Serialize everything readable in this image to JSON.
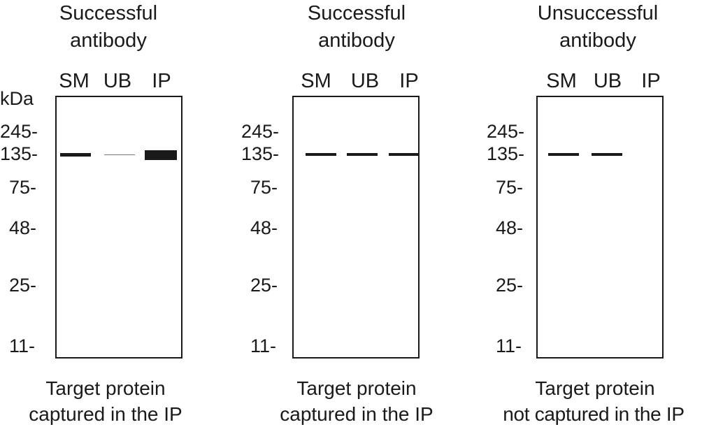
{
  "units_label": "kDa",
  "markers": [
    "245-",
    "135-",
    "75-",
    "48-",
    "25-",
    "11-"
  ],
  "lanes": [
    "SM",
    "UB",
    "IP"
  ],
  "panels": [
    {
      "title_line1": "Successful",
      "title_line2": "antibody",
      "caption_line1": "Target protein",
      "caption_line2": "captured in the IP",
      "bands": {
        "SM": "strong",
        "UB": "faint",
        "IP": "very-strong"
      }
    },
    {
      "title_line1": "Successful",
      "title_line2": "antibody",
      "caption_line1": "Target protein",
      "caption_line2": "captured in the IP",
      "bands": {
        "SM": "strong",
        "UB": "strong",
        "IP": "strong"
      }
    },
    {
      "title_line1": "Unsuccessful",
      "title_line2": "antibody",
      "caption_line1": "Target protein",
      "caption_line2": "not captured in the IP",
      "bands": {
        "SM": "strong",
        "UB": "strong",
        "IP": "none"
      }
    }
  ]
}
